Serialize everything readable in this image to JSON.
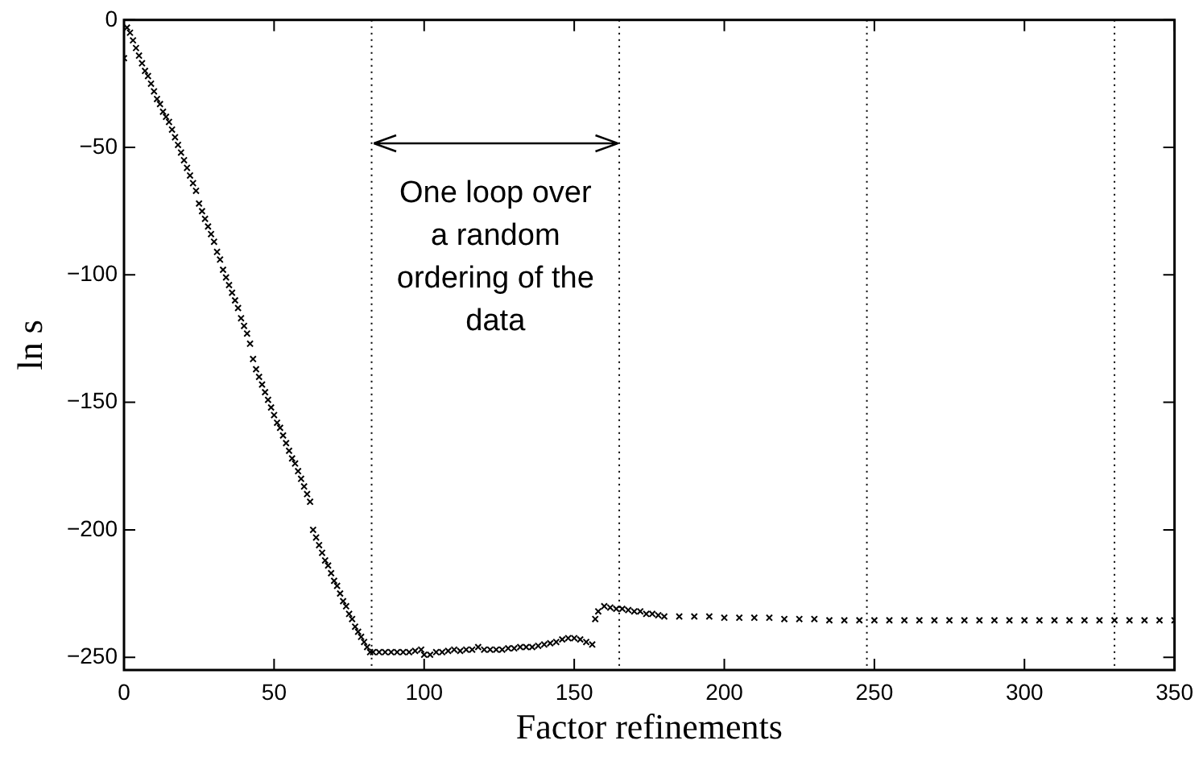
{
  "chart_data": {
    "type": "scatter",
    "xlabel": "Factor refinements",
    "ylabel": "ln s",
    "marker": "cross",
    "grid": false,
    "legend": false,
    "xlim": [
      0,
      350
    ],
    "xticks": [
      0,
      50,
      100,
      150,
      200,
      250,
      300,
      350
    ],
    "ylim": [
      -255,
      0
    ],
    "yticks": [
      -250,
      -200,
      -150,
      -100,
      -50,
      0
    ],
    "series": [
      {
        "color": "#000000",
        "x": [
          0,
          1,
          2,
          3,
          4,
          5,
          6,
          7,
          8,
          9,
          10,
          11,
          12,
          13,
          14,
          15,
          16,
          17,
          18,
          19,
          20,
          21,
          22,
          23,
          24,
          25,
          26,
          27,
          28,
          29,
          30,
          31,
          32,
          33,
          34,
          35,
          36,
          37,
          38,
          39,
          40,
          41,
          42,
          43,
          44,
          45,
          46,
          47,
          48,
          49,
          50,
          51,
          52,
          53,
          54,
          55,
          56,
          57,
          58,
          59,
          60,
          61,
          62,
          63,
          64,
          65,
          66,
          67,
          68,
          69,
          70,
          71,
          72,
          73,
          74,
          75,
          76,
          77,
          78,
          79,
          80,
          81,
          82,
          83,
          85,
          87,
          89,
          91,
          93,
          95,
          97,
          99,
          100,
          102,
          104,
          106,
          108,
          110,
          112,
          114,
          116,
          118,
          120,
          122,
          124,
          126,
          128,
          130,
          132,
          134,
          136,
          138,
          140,
          142,
          144,
          146,
          148,
          150,
          152,
          154,
          156,
          157,
          158,
          160,
          162,
          164,
          166,
          168,
          170,
          172,
          174,
          176,
          178,
          180,
          185,
          190,
          195,
          200,
          205,
          210,
          215,
          220,
          225,
          230,
          235,
          240,
          245,
          250,
          255,
          260,
          265,
          270,
          275,
          280,
          285,
          290,
          295,
          300,
          305,
          310,
          315,
          320,
          325,
          330,
          335,
          340,
          345,
          350
        ],
        "values": [
          -15,
          -3,
          -5,
          -8,
          -11,
          -14,
          -17,
          -20,
          -22,
          -25,
          -28,
          -31,
          -33,
          -36,
          -38,
          -40,
          -43,
          -46,
          -49,
          -52,
          -55,
          -58,
          -61,
          -64,
          -67,
          -72,
          -75,
          -78,
          -81,
          -84,
          -87,
          -91,
          -94,
          -98,
          -101,
          -104,
          -107,
          -110,
          -113,
          -117,
          -120,
          -123,
          -127,
          -133,
          -137,
          -140,
          -143,
          -146,
          -149,
          -152,
          -155,
          -158,
          -160,
          -163,
          -166,
          -169,
          -172,
          -174,
          -177,
          -180,
          -183,
          -186,
          -189,
          -200,
          -203,
          -206,
          -209,
          -212,
          -214,
          -217,
          -220,
          -222,
          -225,
          -228,
          -230,
          -233,
          -235,
          -238,
          -240,
          -242,
          -244,
          -246,
          -248,
          -248,
          -248,
          -248,
          -248,
          -248,
          -248,
          -248,
          -247.5,
          -247,
          -249,
          -249,
          -248,
          -248,
          -247.5,
          -247,
          -247.5,
          -247,
          -247,
          -246,
          -247,
          -247,
          -247,
          -247,
          -246.5,
          -246.5,
          -246,
          -246,
          -246,
          -245.5,
          -245,
          -244.5,
          -244,
          -243,
          -242.5,
          -242.5,
          -243,
          -244,
          -245,
          -235,
          -232,
          -230,
          -230.5,
          -231,
          -231,
          -231.5,
          -232,
          -232,
          -233,
          -233,
          -233.5,
          -234,
          -234,
          -234,
          -234,
          -234.5,
          -234.5,
          -234.5,
          -234.5,
          -235,
          -235,
          -235,
          -235.5,
          -235.5,
          -235.5,
          -235.5,
          -235.5,
          -235.5,
          -235.5,
          -235.5,
          -235.5,
          -235.5,
          -235.5,
          -235.5,
          -235.5,
          -235.5,
          -235.5,
          -235.5,
          -235.5,
          -235.5,
          -235.5,
          -235.5,
          -235.5,
          -235.5,
          -235.5,
          -235.5
        ]
      }
    ],
    "ref_lines": [
      {
        "axis": "x",
        "value": 82.5,
        "line_style": "dotted"
      },
      {
        "axis": "x",
        "value": 165,
        "line_style": "dotted"
      },
      {
        "axis": "x",
        "value": 247.5,
        "line_style": "dotted"
      },
      {
        "axis": "x",
        "value": 330,
        "line_style": "dotted"
      }
    ],
    "annotations": [
      "One loop over\na random\nordering of the\ndata"
    ]
  }
}
